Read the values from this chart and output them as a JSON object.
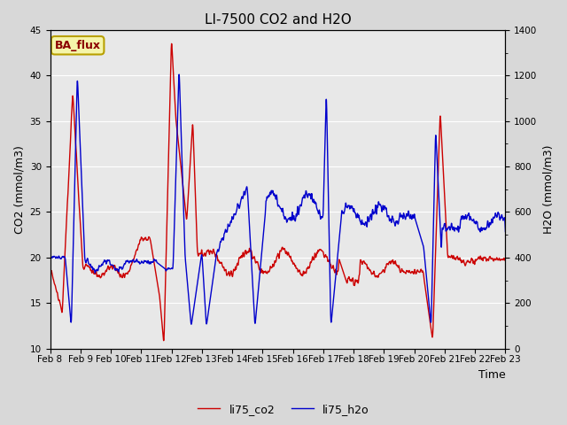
{
  "title": "LI-7500 CO2 and H2O",
  "xlabel": "Time",
  "ylabel_left": "CO2 (mmol/m3)",
  "ylabel_right": "H2O (mmol/m3)",
  "xlim_days": [
    8,
    23
  ],
  "ylim_left": [
    10,
    45
  ],
  "ylim_right": [
    0,
    1400
  ],
  "yticks_left": [
    10,
    15,
    20,
    25,
    30,
    35,
    40,
    45
  ],
  "yticks_right": [
    0,
    200,
    400,
    600,
    800,
    1000,
    1200,
    1400
  ],
  "xtick_labels": [
    "Feb 8",
    "Feb 9",
    "Feb 10",
    "Feb 11",
    "Feb 12",
    "Feb 13",
    "Feb 14",
    "Feb 15",
    "Feb 16",
    "Feb 17",
    "Feb 18",
    "Feb 19",
    "Feb 20",
    "Feb 21",
    "Feb 22",
    "Feb 23"
  ],
  "co2_color": "#cc0000",
  "h2o_color": "#0000cc",
  "fig_bg_color": "#d8d8d8",
  "plot_bg_color": "#e8e8e8",
  "legend_co2": "li75_co2",
  "legend_h2o": "li75_h2o",
  "annotation_text": "BA_flux",
  "title_fontsize": 11,
  "label_fontsize": 9,
  "tick_fontsize": 7.5,
  "legend_fontsize": 9,
  "linewidth": 1.0
}
